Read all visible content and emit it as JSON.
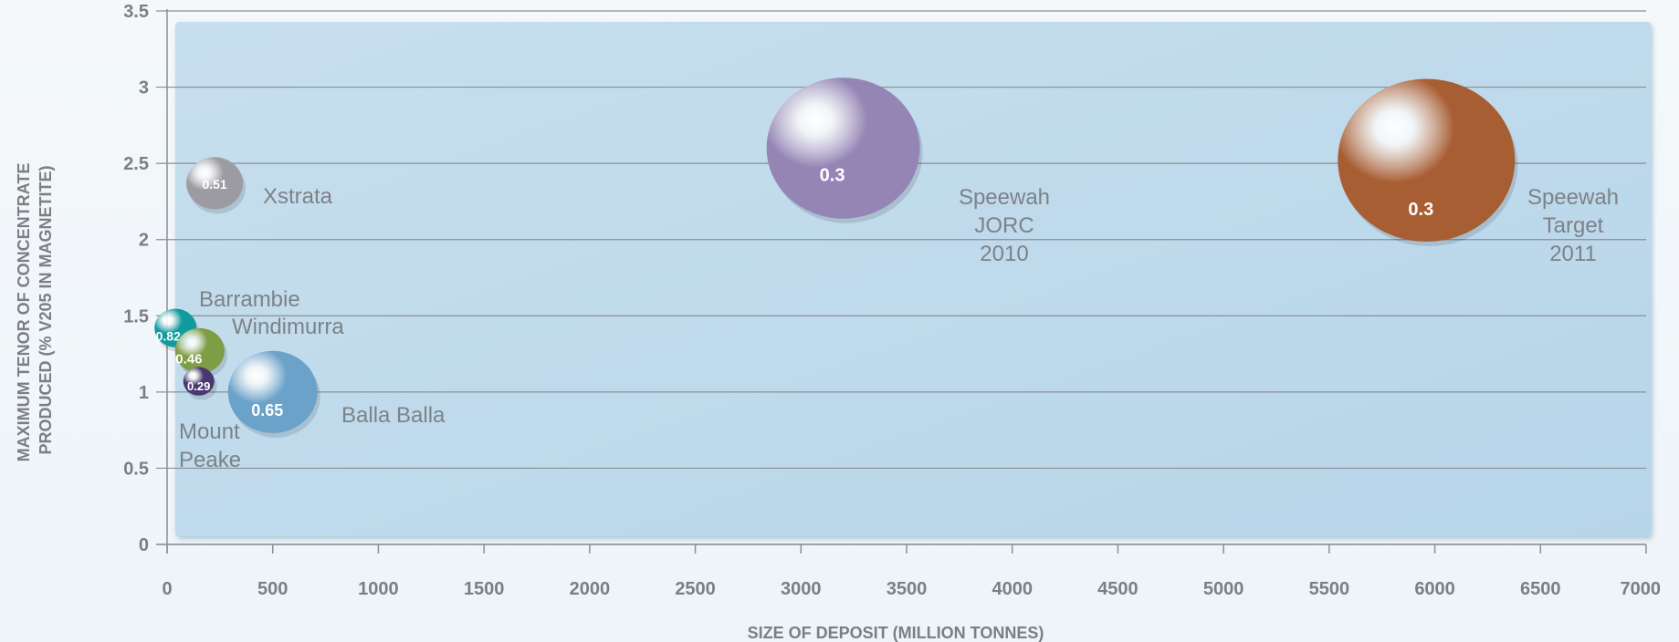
{
  "chart_data": {
    "type": "scatter",
    "subtype": "bubble",
    "xlabel": "SIZE OF DEPOSIT (MILLION TONNES)",
    "ylabel": [
      "MAXIMUM TENOR OF CONCENTRATE",
      "PRODUCED (% V205 IN MAGNETITE)"
    ],
    "xlim": [
      0,
      7000
    ],
    "ylim": [
      0,
      3.5
    ],
    "x_ticks": [
      "0",
      "500",
      "1000",
      "1500",
      "2000",
      "2500",
      "3000",
      "3500",
      "4000",
      "4500",
      "5000",
      "5500",
      "6000",
      "6500",
      "7000"
    ],
    "y_ticks": [
      "0",
      "0.5",
      "1",
      "1.5",
      "2",
      "2.5",
      "3",
      "3.5"
    ],
    "grid": "horizontal",
    "points": [
      {
        "name": "Xstrata",
        "label_lines": [
          "Xstrata"
        ],
        "value": "0.51",
        "x": 225,
        "y": 2.37,
        "color": "#9c9ba1"
      },
      {
        "name": "Speewah JORC 2010",
        "label_lines": [
          "Speewah",
          "JORC",
          "2010"
        ],
        "value": "0.3",
        "x": 3200,
        "y": 2.6,
        "color": "#9585b5"
      },
      {
        "name": "Speewah Target 2011",
        "label_lines": [
          "Speewah",
          "Target",
          "2011"
        ],
        "value": "0.3",
        "x": 5960,
        "y": 2.52,
        "color": "#a85e33"
      },
      {
        "name": "Barrambie",
        "label_lines": [
          "Barrambie"
        ],
        "value": "0.82",
        "x": 40,
        "y": 1.42,
        "color": "#129b9f"
      },
      {
        "name": "Windimurra",
        "label_lines": [
          "Windimurra"
        ],
        "value": "0.46",
        "x": 155,
        "y": 1.27,
        "color": "#7e9d44"
      },
      {
        "name": "Mount Peake",
        "label_lines": [
          "Mount",
          "Peake"
        ],
        "value": "0.29",
        "x": 150,
        "y": 1.07,
        "color": "#4a3670"
      },
      {
        "name": "Balla Balla",
        "label_lines": [
          "Balla Balla"
        ],
        "value": "0.65",
        "x": 500,
        "y": 1.0,
        "color": "#6aa2c9"
      }
    ]
  }
}
